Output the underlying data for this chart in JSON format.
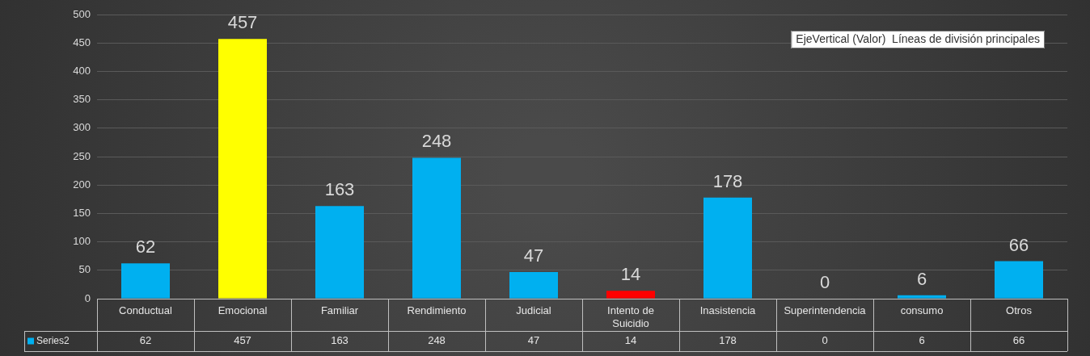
{
  "chart_data": {
    "type": "bar",
    "categories": [
      "Conductual",
      "Emocional",
      "Familiar",
      "Rendimiento",
      "Judicial",
      "Intento de Suicidio",
      "Inasistencia",
      "Superintendencia",
      "consumo",
      "Otros"
    ],
    "series": [
      {
        "name": "Series2",
        "color": "#00b0f0",
        "colors": [
          "#00b0f0",
          "#ffff00",
          "#00b0f0",
          "#00b0f0",
          "#00b0f0",
          "#ff0000",
          "#00b0f0",
          "#00b0f0",
          "#00b0f0",
          "#00b0f0"
        ],
        "values": [
          62,
          457,
          163,
          248,
          47,
          14,
          178,
          0,
          6,
          66
        ]
      }
    ],
    "ylim": [
      0,
      500
    ],
    "yticks": [
      0,
      50,
      100,
      150,
      200,
      250,
      300,
      350,
      400,
      450,
      500
    ],
    "grid": "y",
    "data_labels": true,
    "legend": "bottom",
    "annotations": [
      "EjeVertical (Valor)  Líneas de división principales",
      "62",
      "457",
      "163",
      "248",
      "47",
      "14",
      "178",
      "0",
      "6",
      "66"
    ]
  }
}
